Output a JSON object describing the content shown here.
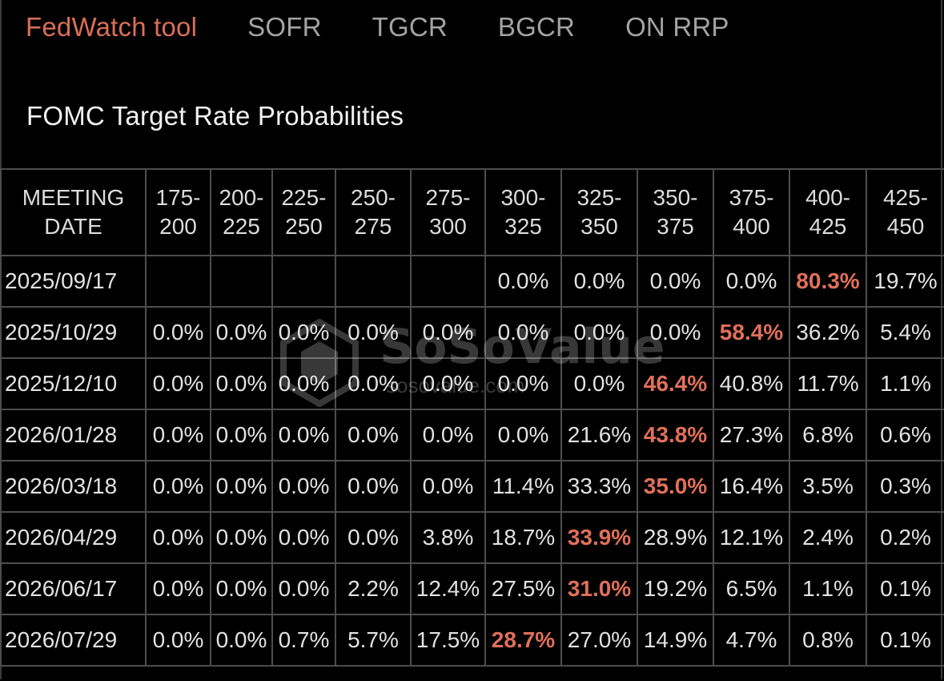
{
  "tabs": [
    {
      "label": "FedWatch tool",
      "active": true
    },
    {
      "label": "SOFR",
      "active": false
    },
    {
      "label": "TGCR",
      "active": false
    },
    {
      "label": "BGCR",
      "active": false
    },
    {
      "label": "ON RRP",
      "active": false
    }
  ],
  "page": {
    "title": "FOMC Target Rate Probabilities"
  },
  "table": {
    "date_header": [
      "MEETING",
      "DATE"
    ],
    "range_headers": [
      [
        "175-",
        "200"
      ],
      [
        "200-",
        "225"
      ],
      [
        "225-",
        "250"
      ],
      [
        "250-",
        "275"
      ],
      [
        "275-",
        "300"
      ],
      [
        "300-",
        "325"
      ],
      [
        "325-",
        "350"
      ],
      [
        "350-",
        "375"
      ],
      [
        "375-",
        "400"
      ],
      [
        "400-",
        "425"
      ],
      [
        "425-",
        "450"
      ]
    ],
    "rows": [
      {
        "date": "2025/09/17",
        "values": [
          "",
          "",
          "",
          "",
          "",
          "0.0%",
          "0.0%",
          "0.0%",
          "0.0%",
          "80.3%",
          "19.7%"
        ],
        "highlight": 9
      },
      {
        "date": "2025/10/29",
        "values": [
          "0.0%",
          "0.0%",
          "0.0%",
          "0.0%",
          "0.0%",
          "0.0%",
          "0.0%",
          "0.0%",
          "58.4%",
          "36.2%",
          "5.4%"
        ],
        "highlight": 8
      },
      {
        "date": "2025/12/10",
        "values": [
          "0.0%",
          "0.0%",
          "0.0%",
          "0.0%",
          "0.0%",
          "0.0%",
          "0.0%",
          "46.4%",
          "40.8%",
          "11.7%",
          "1.1%"
        ],
        "highlight": 7
      },
      {
        "date": "2026/01/28",
        "values": [
          "0.0%",
          "0.0%",
          "0.0%",
          "0.0%",
          "0.0%",
          "0.0%",
          "21.6%",
          "43.8%",
          "27.3%",
          "6.8%",
          "0.6%"
        ],
        "highlight": 7
      },
      {
        "date": "2026/03/18",
        "values": [
          "0.0%",
          "0.0%",
          "0.0%",
          "0.0%",
          "0.0%",
          "11.4%",
          "33.3%",
          "35.0%",
          "16.4%",
          "3.5%",
          "0.3%"
        ],
        "highlight": 7
      },
      {
        "date": "2026/04/29",
        "values": [
          "0.0%",
          "0.0%",
          "0.0%",
          "0.0%",
          "3.8%",
          "18.7%",
          "33.9%",
          "28.9%",
          "12.1%",
          "2.4%",
          "0.2%"
        ],
        "highlight": 6
      },
      {
        "date": "2026/06/17",
        "values": [
          "0.0%",
          "0.0%",
          "0.0%",
          "2.2%",
          "12.4%",
          "27.5%",
          "31.0%",
          "19.2%",
          "6.5%",
          "1.1%",
          "0.1%"
        ],
        "highlight": 6
      },
      {
        "date": "2026/07/29",
        "values": [
          "0.0%",
          "0.0%",
          "0.7%",
          "5.7%",
          "17.5%",
          "28.7%",
          "27.0%",
          "14.9%",
          "4.7%",
          "0.8%",
          "0.1%"
        ],
        "highlight": 5
      }
    ]
  },
  "watermark": {
    "brand": "SoSoValue",
    "domain": "sosovalue.com"
  },
  "colors": {
    "accent": "#d96f58",
    "highlight": "#e0705a",
    "background": "#000000",
    "grid": "#4d4d4d",
    "tab_inactive": "#a3a3a3"
  }
}
